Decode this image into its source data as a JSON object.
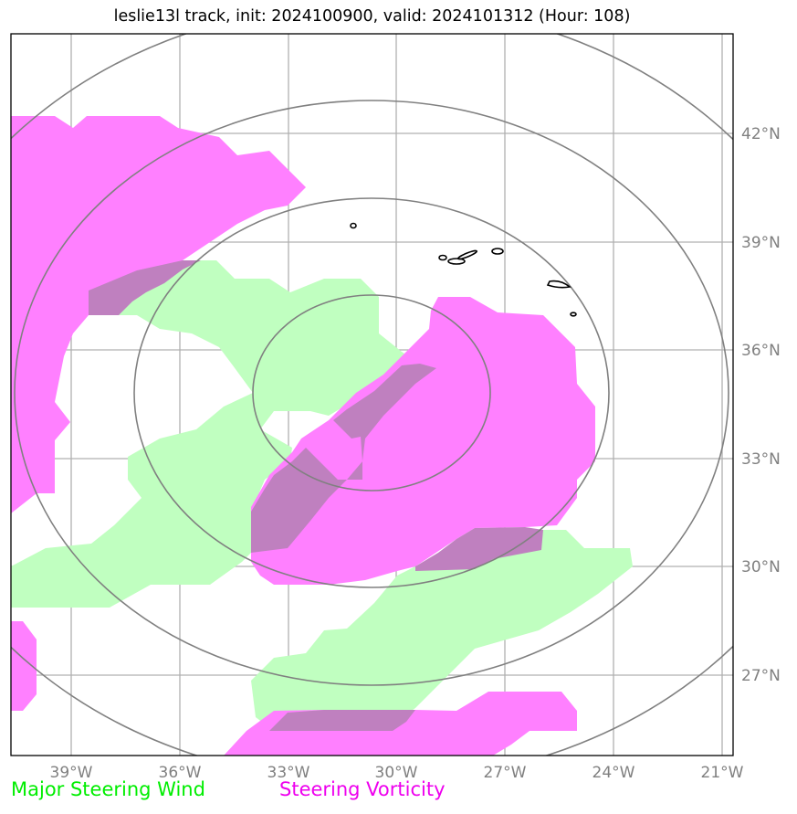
{
  "title": "leslie13l track, init: 2024100900, valid: 2024101312 (Hour: 108)",
  "map": {
    "lon_ticks": [
      "39°W",
      "36°W",
      "33°W",
      "30°W",
      "27°W",
      "24°W",
      "21°W"
    ],
    "lat_ticks": [
      "42°N",
      "39°N",
      "36°N",
      "33°N",
      "30°N",
      "27°N"
    ],
    "extent": {
      "lon_min": -40.6,
      "lon_max": -20.8,
      "lat_min": 25.0,
      "lat_max": 44.8
    },
    "range_rings": {
      "count": 4,
      "center": "approx 30.7°W, 35°N"
    },
    "colors": {
      "steering_wind": "#c0ffc0",
      "steering_vorticity": "#ff80ff",
      "overlap": "#bf80bf",
      "range_rings": "#808080",
      "gridlines": "#b0b0b0",
      "coastlines": "#000000"
    }
  },
  "legend": {
    "wind": {
      "label": "Major Steering Wind",
      "color": "#00ee00"
    },
    "vorticity": {
      "label": "Steering Vorticity",
      "color": "#ee00ee"
    }
  }
}
